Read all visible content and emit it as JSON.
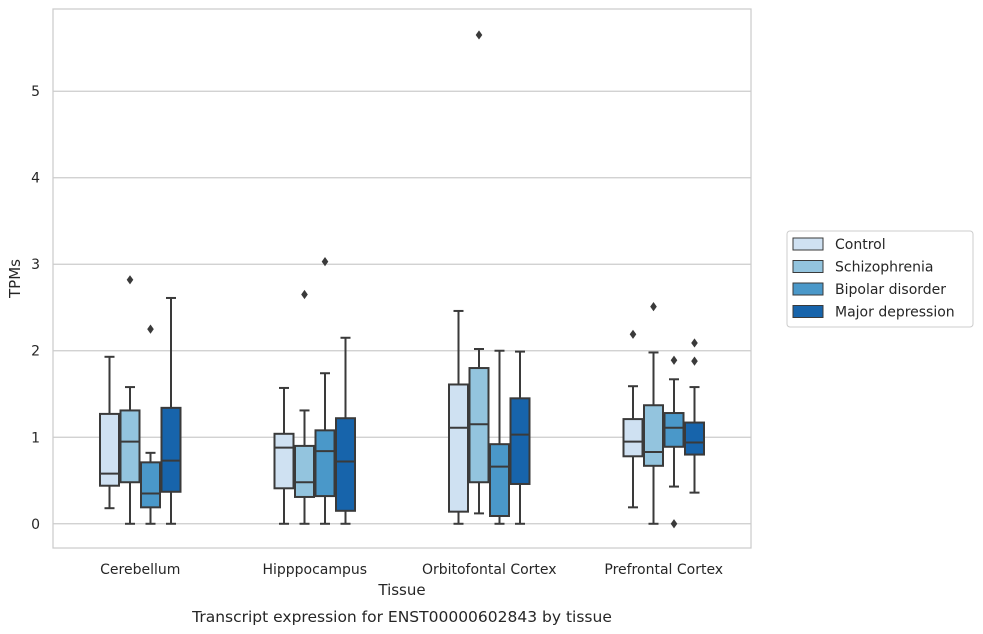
{
  "chart_data": {
    "type": "boxplot",
    "title": "",
    "caption": "Transcript expression for ENST00000602843 by tissue",
    "xlabel": "Tissue",
    "ylabel": "TPMs",
    "ylim": [
      -0.28,
      5.95
    ],
    "yticks": [
      0,
      1,
      2,
      3,
      4,
      5
    ],
    "grid": true,
    "legend_position": "right",
    "categories": [
      "Cerebellum",
      "Hipppocampus",
      "Orbitofontal Cortex",
      "Prefrontal Cortex"
    ],
    "series": [
      {
        "name": "Control",
        "color": "#cfe1f2",
        "boxes": [
          {
            "whislo": 0.18,
            "q1": 0.44,
            "med": 0.58,
            "q3": 1.27,
            "whishi": 1.93,
            "fliers": []
          },
          {
            "whislo": 0.0,
            "q1": 0.41,
            "med": 0.88,
            "q3": 1.04,
            "whishi": 1.57,
            "fliers": []
          },
          {
            "whislo": 0.0,
            "q1": 0.14,
            "med": 1.11,
            "q3": 1.61,
            "whishi": 2.46,
            "fliers": []
          },
          {
            "whislo": 0.19,
            "q1": 0.78,
            "med": 0.95,
            "q3": 1.21,
            "whishi": 1.59,
            "fliers": [
              2.19
            ]
          }
        ]
      },
      {
        "name": "Schizophrenia",
        "color": "#93c4de",
        "boxes": [
          {
            "whislo": 0.0,
            "q1": 0.48,
            "med": 0.95,
            "q3": 1.31,
            "whishi": 1.58,
            "fliers": [
              2.82
            ]
          },
          {
            "whislo": 0.0,
            "q1": 0.31,
            "med": 0.48,
            "q3": 0.9,
            "whishi": 1.31,
            "fliers": [
              2.65
            ]
          },
          {
            "whislo": 0.12,
            "q1": 0.48,
            "med": 1.15,
            "q3": 1.8,
            "whishi": 2.02,
            "fliers": [
              5.65
            ]
          },
          {
            "whislo": 0.0,
            "q1": 0.67,
            "med": 0.83,
            "q3": 1.37,
            "whishi": 1.98,
            "fliers": [
              2.51
            ]
          }
        ]
      },
      {
        "name": "Bipolar disorder",
        "color": "#4a98c9",
        "boxes": [
          {
            "whislo": 0.0,
            "q1": 0.19,
            "med": 0.35,
            "q3": 0.71,
            "whishi": 0.82,
            "fliers": [
              2.25
            ]
          },
          {
            "whislo": 0.0,
            "q1": 0.32,
            "med": 0.84,
            "q3": 1.08,
            "whishi": 1.74,
            "fliers": [
              3.03
            ]
          },
          {
            "whislo": 0.0,
            "q1": 0.09,
            "med": 0.66,
            "q3": 0.92,
            "whishi": 2.0,
            "fliers": []
          },
          {
            "whislo": 0.43,
            "q1": 0.89,
            "med": 1.11,
            "q3": 1.28,
            "whishi": 1.67,
            "fliers": [
              1.89,
              0.0
            ]
          }
        ]
      },
      {
        "name": "Major depression",
        "color": "#1764ab",
        "boxes": [
          {
            "whislo": 0.0,
            "q1": 0.37,
            "med": 0.73,
            "q3": 1.34,
            "whishi": 2.61,
            "fliers": []
          },
          {
            "whislo": 0.0,
            "q1": 0.15,
            "med": 0.72,
            "q3": 1.22,
            "whishi": 2.15,
            "fliers": []
          },
          {
            "whislo": 0.0,
            "q1": 0.46,
            "med": 1.03,
            "q3": 1.45,
            "whishi": 1.99,
            "fliers": []
          },
          {
            "whislo": 0.36,
            "q1": 0.8,
            "med": 0.94,
            "q3": 1.17,
            "whishi": 1.58,
            "fliers": [
              2.09,
              1.88
            ]
          }
        ]
      }
    ]
  },
  "style": {
    "grid_color": "#cccccc",
    "frame_color": "#cccccc",
    "line_color": "#3a3a3a"
  }
}
